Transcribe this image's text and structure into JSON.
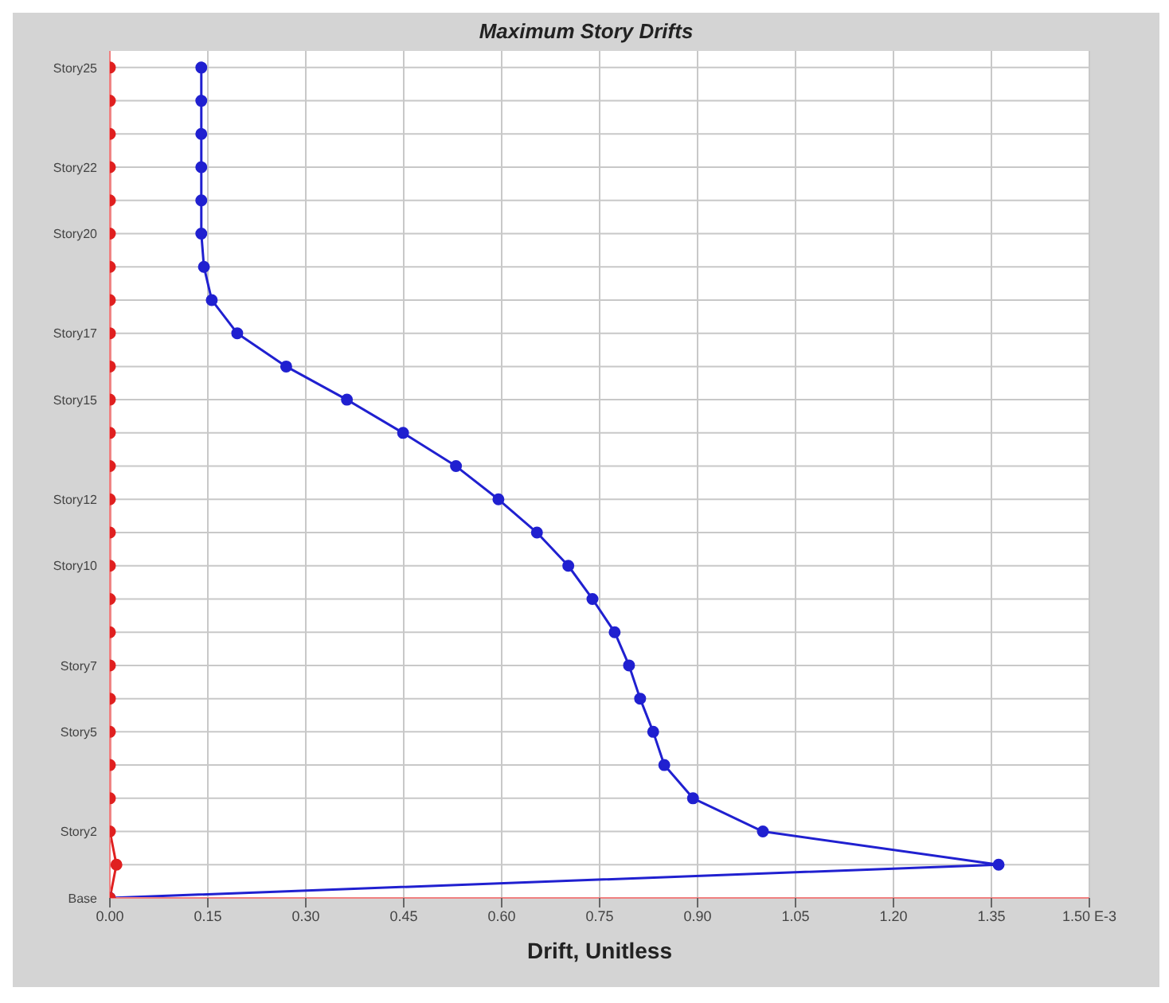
{
  "chart_data": {
    "type": "line",
    "orientation": "horizontal",
    "title": "Maximum Story Drifts",
    "xlabel": "Drift, Unitless",
    "categories": [
      "Story25",
      null,
      null,
      "Story22",
      null,
      "Story20",
      null,
      null,
      "Story17",
      null,
      "Story15",
      null,
      null,
      "Story12",
      null,
      "Story10",
      null,
      null,
      "Story7",
      null,
      "Story5",
      null,
      null,
      "Story2",
      null,
      "Base"
    ],
    "series": [
      {
        "color": "#2020d0",
        "values": [
          0.14,
          0.14,
          0.14,
          0.14,
          0.14,
          0.14,
          0.144,
          0.156,
          0.195,
          0.27,
          0.363,
          0.449,
          0.53,
          0.595,
          0.654,
          0.702,
          0.739,
          0.773,
          0.795,
          0.812,
          0.832,
          0.849,
          0.893,
          1.0,
          1.361,
          0
        ]
      },
      {
        "color": "#e02020",
        "values": [
          0,
          0,
          0,
          0,
          0,
          0,
          0,
          0,
          0,
          0,
          0,
          0,
          0,
          0,
          0,
          0,
          0,
          0,
          0,
          0,
          0,
          0,
          0,
          0,
          0.01,
          0
        ]
      }
    ],
    "xlim": [
      0,
      1.5
    ],
    "xticks": [
      {
        "value": 0,
        "label": "0.00"
      },
      {
        "value": 0.15,
        "label": "0.15"
      },
      {
        "value": 0.3,
        "label": "0.30"
      },
      {
        "value": 0.45,
        "label": "0.45"
      },
      {
        "value": 0.6,
        "label": "0.60"
      },
      {
        "value": 0.75,
        "label": "0.75"
      },
      {
        "value": 0.9,
        "label": "0.90"
      },
      {
        "value": 1.05,
        "label": "1.05"
      },
      {
        "value": 1.2,
        "label": "1.20"
      },
      {
        "value": 1.35,
        "label": "1.35"
      },
      {
        "value": 1.5,
        "label": "1.50 E-3"
      }
    ],
    "grid": true,
    "marker": "circle",
    "line_style": "solid"
  }
}
